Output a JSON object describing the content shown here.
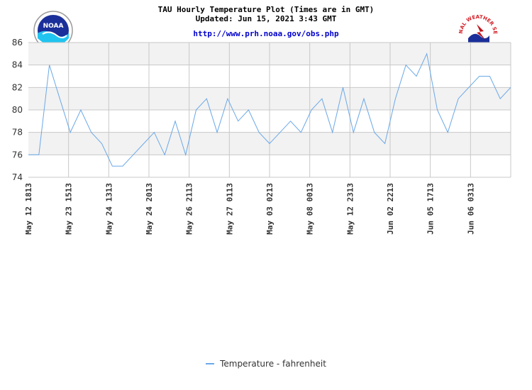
{
  "header": {
    "title_line1": "TAU Hourly Temperature Plot (Times are in GMT)",
    "title_line2": "Updated: Jun 15, 2021 3:43 GMT",
    "url": "http://www.prh.noaa.gov/obs.php"
  },
  "logos": {
    "noaa_text": "NOAA",
    "nws_text": "NATIONAL WEATHER SERVICE"
  },
  "colors": {
    "line": "#6aa8e8",
    "band": "#f2f2f2",
    "grid": "#c8c8c8"
  },
  "chart_data": {
    "type": "line",
    "title": "TAU Hourly Temperature Plot (Times are in GMT)",
    "ylim": [
      74,
      86
    ],
    "yticks": [
      74,
      76,
      78,
      80,
      82,
      84,
      86
    ],
    "xticks": [
      "May 12 1813",
      "May 23 1513",
      "May 24 1313",
      "May 24 2013",
      "May 26 2113",
      "May 27 0113",
      "May 03 0213",
      "May 08 0013",
      "May 12 2313",
      "Jun 02 2213",
      "Jun 05 1713",
      "Jun 06 0313"
    ],
    "grid": true,
    "legend_position": "bottom-center",
    "series": [
      {
        "name": "Temperature - fahrenheit",
        "values": [
          76,
          76,
          84,
          81,
          78,
          80,
          78,
          77,
          75,
          75,
          76,
          77,
          78,
          76,
          79,
          76,
          80,
          81,
          78,
          81,
          79,
          80,
          78,
          77,
          78,
          79,
          78,
          80,
          81,
          78,
          82,
          78,
          81,
          78,
          77,
          81,
          84,
          83,
          85,
          80,
          78,
          81,
          82,
          83,
          83,
          81,
          82
        ]
      }
    ]
  }
}
